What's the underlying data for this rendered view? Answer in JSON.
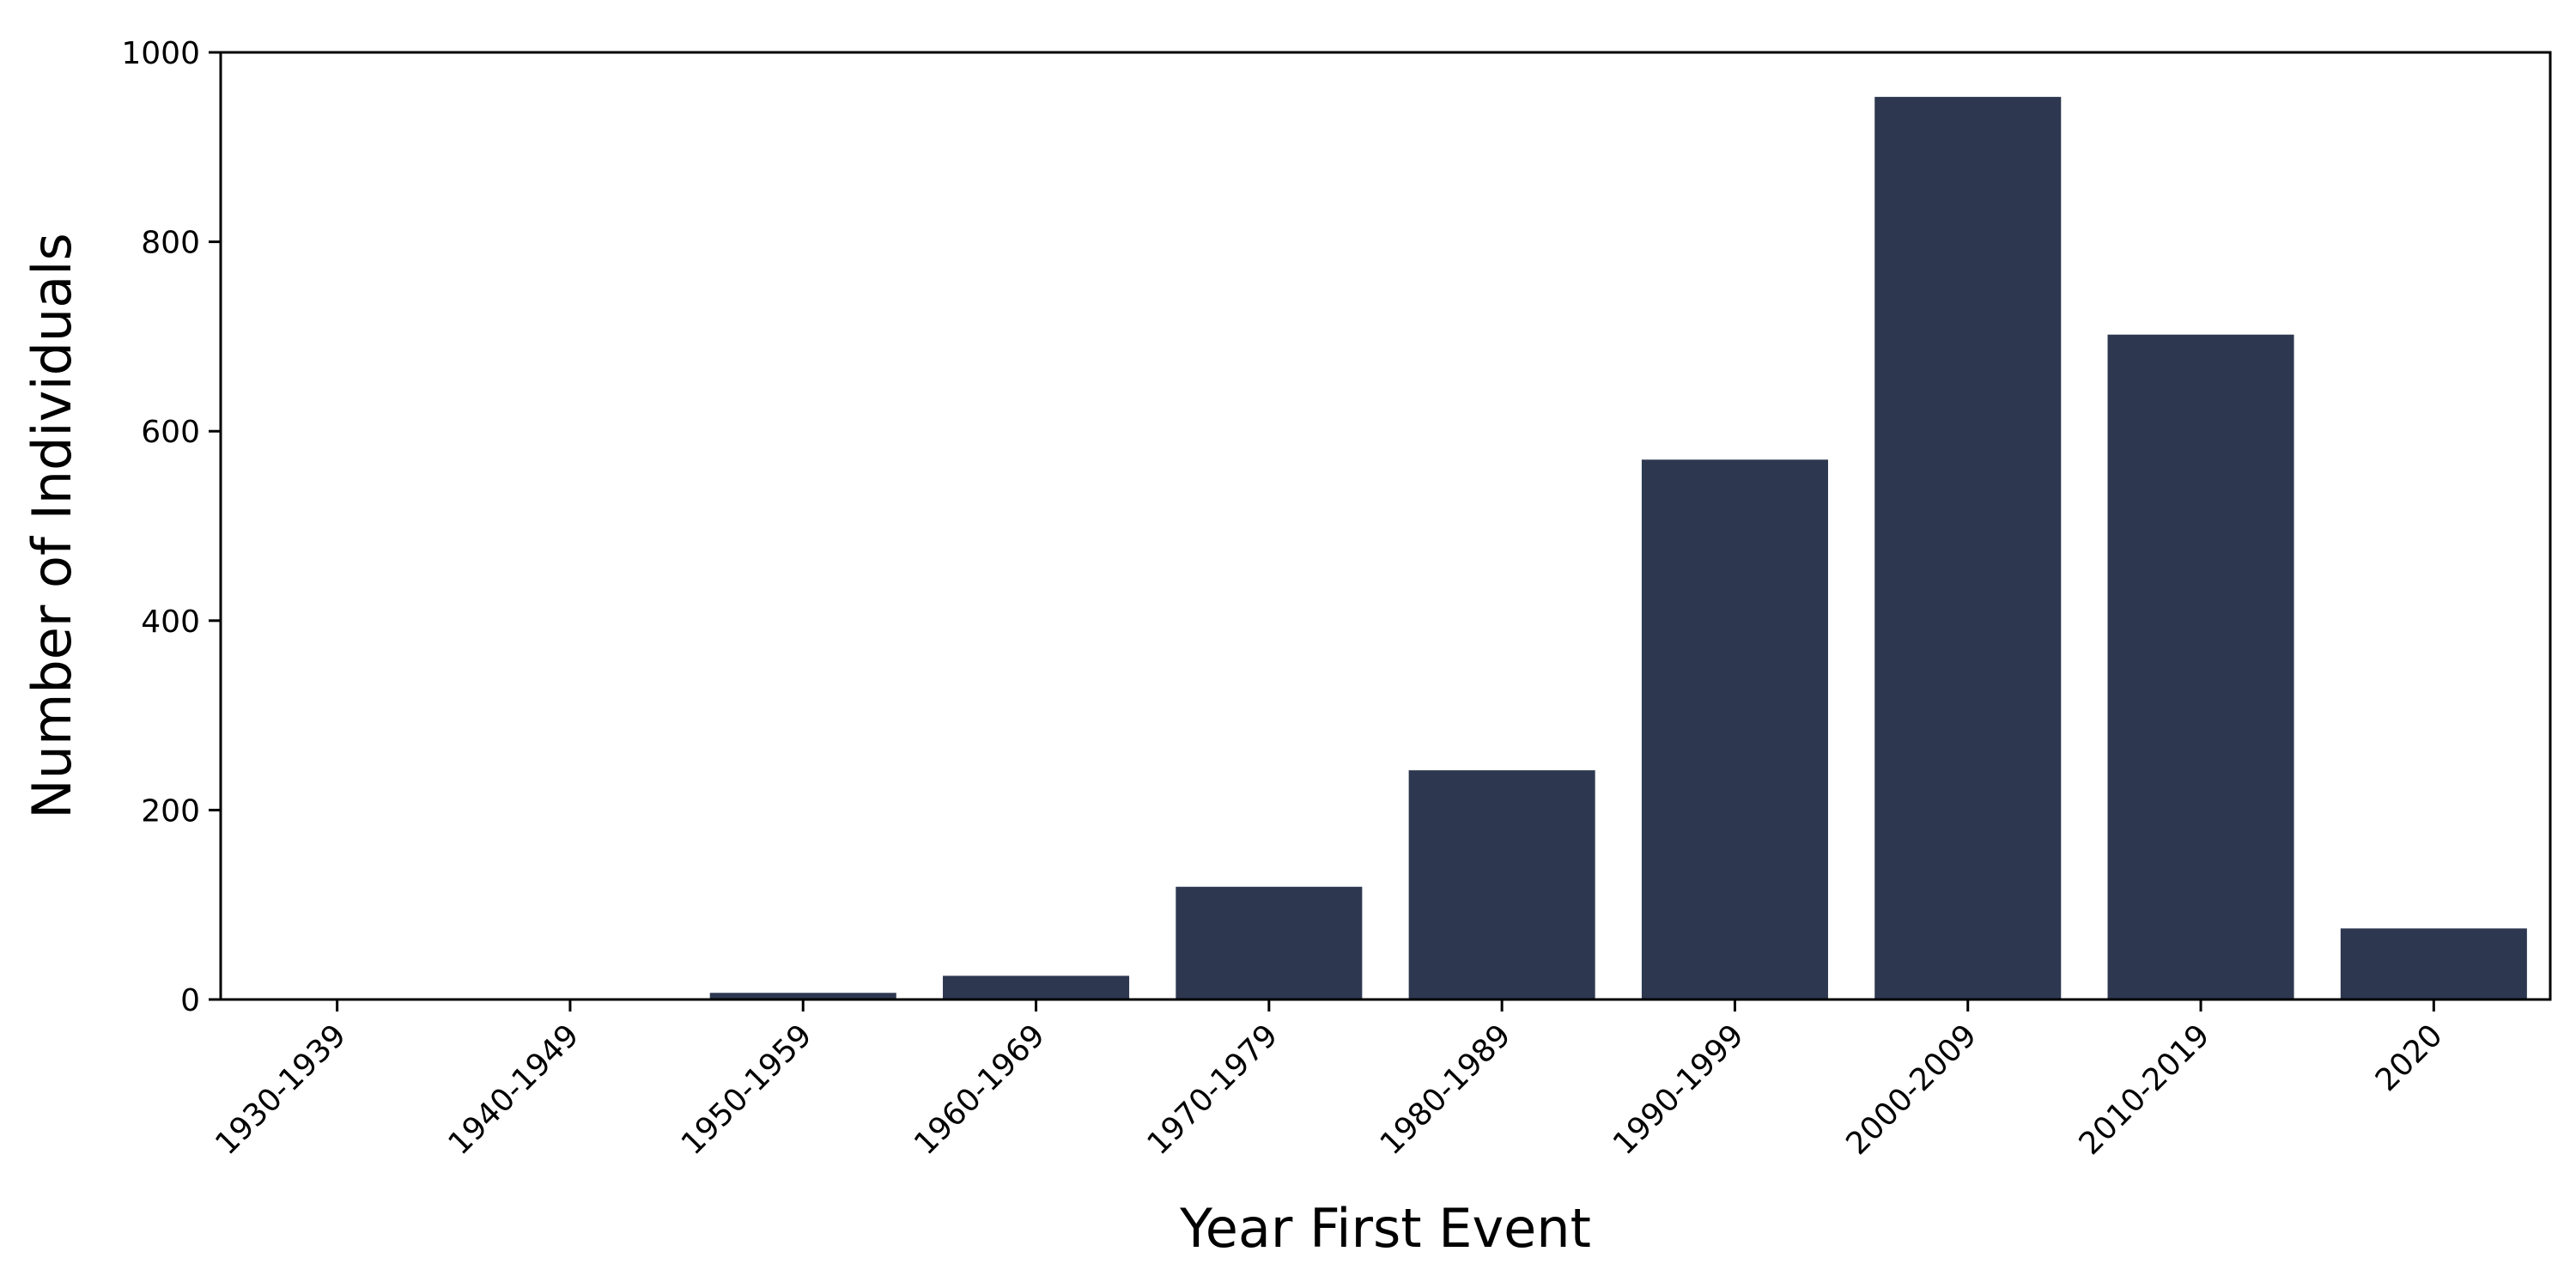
{
  "chart_data": {
    "type": "bar",
    "categories": [
      "1930-1939",
      "1940-1949",
      "1950-1959",
      "1960-1969",
      "1970-1979",
      "1980-1989",
      "1990-1999",
      "2000-2009",
      "2010-2019",
      "2020"
    ],
    "values": [
      1,
      1,
      7,
      25,
      119,
      242,
      570,
      953,
      702,
      75
    ],
    "xlabel": "Year First Event",
    "ylabel": "Number of Individuals",
    "ylim": [
      0,
      1000
    ],
    "yticks": [
      0,
      200,
      400,
      600,
      800,
      1000
    ],
    "grid": false,
    "bar_color": "#2d3850"
  }
}
